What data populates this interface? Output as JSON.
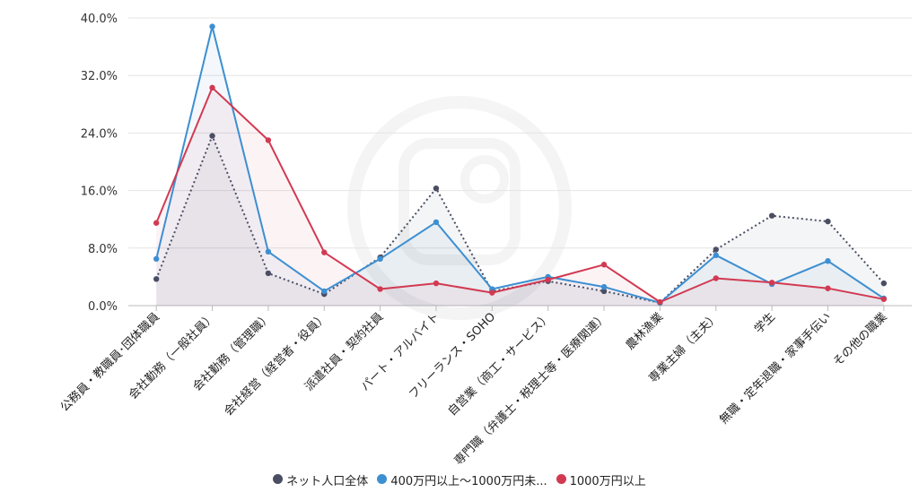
{
  "chart_data": {
    "type": "line",
    "categories": [
      "公務員・教職員･団体職員",
      "会社勤務（一般社員）",
      "会社勤務（管理職）",
      "会社経営（経営者・役員）",
      "派遣社員・契約社員",
      "パート・アルバイト",
      "フリーランス・SOHO",
      "自営業（商工・サービス）",
      "専門職（弁護士・税理士等・医療関連）",
      "農林漁業",
      "専業主婦（主夫）",
      "学生",
      "無職・定年退職・家事手伝い",
      "その他の職業"
    ],
    "series": [
      {
        "name": "ネット人口全体",
        "color": "#4a4e63",
        "dashed": true,
        "values": [
          3.7,
          23.6,
          4.5,
          1.6,
          6.7,
          16.3,
          2.0,
          3.4,
          2.0,
          0.4,
          7.8,
          12.5,
          11.7,
          3.1
        ]
      },
      {
        "name": "400万円以上～1000万円未...",
        "color": "#3d8fd1",
        "dashed": false,
        "values": [
          6.5,
          38.8,
          7.5,
          2.0,
          6.5,
          11.6,
          2.3,
          4.0,
          2.6,
          0.4,
          7.0,
          3.0,
          6.2,
          1.0
        ]
      },
      {
        "name": "1000万円以上",
        "color": "#d23a52",
        "dashed": false,
        "values": [
          11.5,
          30.3,
          23.0,
          7.4,
          2.3,
          3.1,
          1.8,
          3.6,
          5.7,
          0.5,
          3.8,
          3.2,
          2.4,
          0.9
        ]
      }
    ],
    "y_ticks": [
      "40.0%",
      "32.0%",
      "24.0%",
      "16.0%",
      "8.0%",
      "0.0%"
    ],
    "ylim": [
      0,
      40
    ],
    "grid": true,
    "legend_position": "bottom"
  }
}
